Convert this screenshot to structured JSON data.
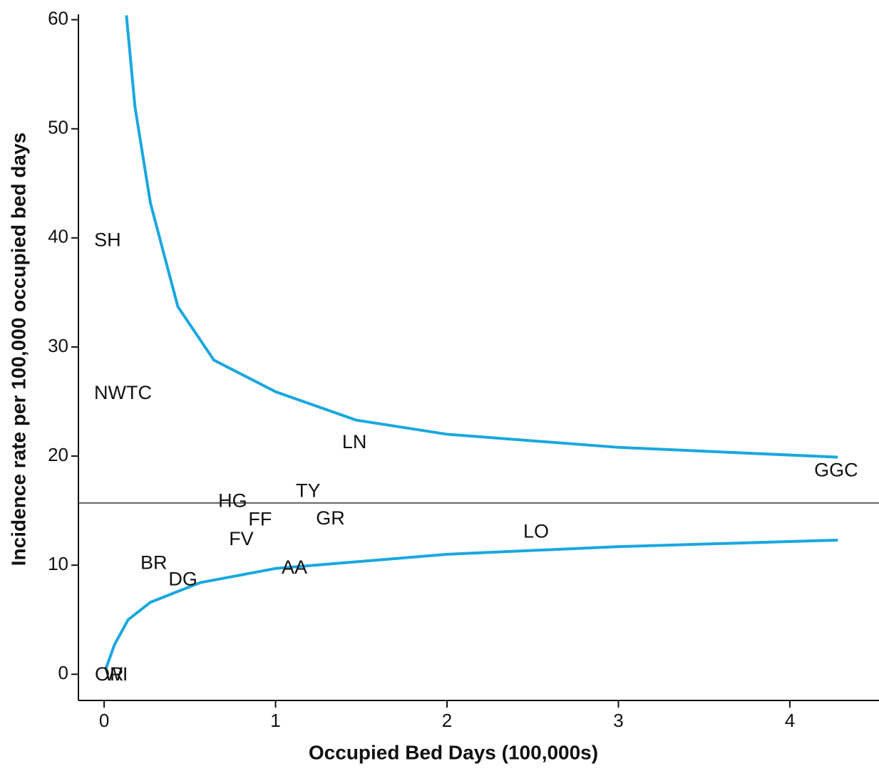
{
  "chart_data": {
    "type": "funnel",
    "xlabel": "Occupied Bed Days (100,000s)",
    "ylabel": "Incidence rate per 100,000 occupied bed days",
    "xlim": [
      -0.15,
      4.52
    ],
    "ylim": [
      -2.4,
      60.5
    ],
    "xticks": [
      0,
      1,
      2,
      3,
      4
    ],
    "yticks": [
      0,
      10,
      20,
      30,
      40,
      50,
      60
    ],
    "reference_line": 15.7,
    "reference_color": "#333333",
    "points": {
      "labels": [
        "SH",
        "NWTC",
        "LN",
        "GGC",
        "TY",
        "HG",
        "FF",
        "GR",
        "FV",
        "LO",
        "BR",
        "DG",
        "AA",
        "OR",
        "WI"
      ],
      "x": [
        0.02,
        0.11,
        1.46,
        4.27,
        1.19,
        0.75,
        0.91,
        1.32,
        0.8,
        2.52,
        0.29,
        0.46,
        1.11,
        0.03,
        0.07
      ],
      "y": [
        39.7,
        25.7,
        21.2,
        18.6,
        16.7,
        15.8,
        14.1,
        14.2,
        12.3,
        13.0,
        10.1,
        8.6,
        9.7,
        -0.1,
        -0.1
      ]
    },
    "series": [
      {
        "color": "#1aa7e0",
        "x": [
          0.13,
          0.18,
          0.27,
          0.43,
          0.64,
          1.0,
          1.47,
          2.0,
          3.0,
          4.28
        ],
        "values": [
          60.4,
          52,
          43.2,
          33.7,
          28.8,
          25.9,
          23.3,
          22.0,
          20.8,
          19.9
        ]
      },
      {
        "color": "#1aa7e0",
        "x": [
          0.01,
          0.06,
          0.14,
          0.27,
          0.56,
          1.0,
          2.0,
          3.0,
          4.28
        ],
        "values": [
          0.5,
          2.7,
          5.0,
          6.6,
          8.4,
          9.7,
          11.0,
          11.7,
          12.3
        ]
      }
    ]
  }
}
